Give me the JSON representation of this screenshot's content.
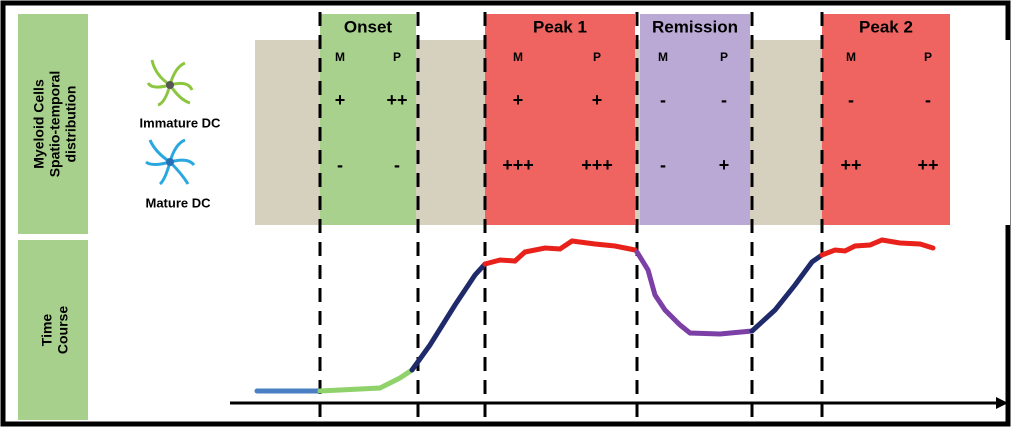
{
  "side_labels": {
    "top": [
      "Myeloid Cells",
      "Spatio-temporal",
      "distribution"
    ],
    "bottom": [
      "Time",
      "Course"
    ]
  },
  "cells": [
    {
      "label": "Immature DC"
    },
    {
      "label": "Mature DC"
    }
  ],
  "phases": [
    {
      "label": "Onset",
      "columns": [
        "M",
        "P"
      ],
      "rows": [
        [
          "+",
          "++"
        ],
        [
          "-",
          "-"
        ]
      ]
    },
    {
      "label": "Peak 1",
      "columns": [
        "M",
        "P"
      ],
      "rows": [
        [
          "+",
          "+"
        ],
        [
          "+++",
          "+++"
        ]
      ]
    },
    {
      "label": "Remission",
      "columns": [
        "M",
        "P"
      ],
      "rows": [
        [
          "-",
          "-"
        ],
        [
          "-",
          "+"
        ]
      ]
    },
    {
      "label": "Peak 2",
      "columns": [
        "M",
        "P"
      ],
      "rows": [
        [
          "-",
          "-"
        ],
        [
          "++",
          "++"
        ]
      ]
    }
  ]
}
